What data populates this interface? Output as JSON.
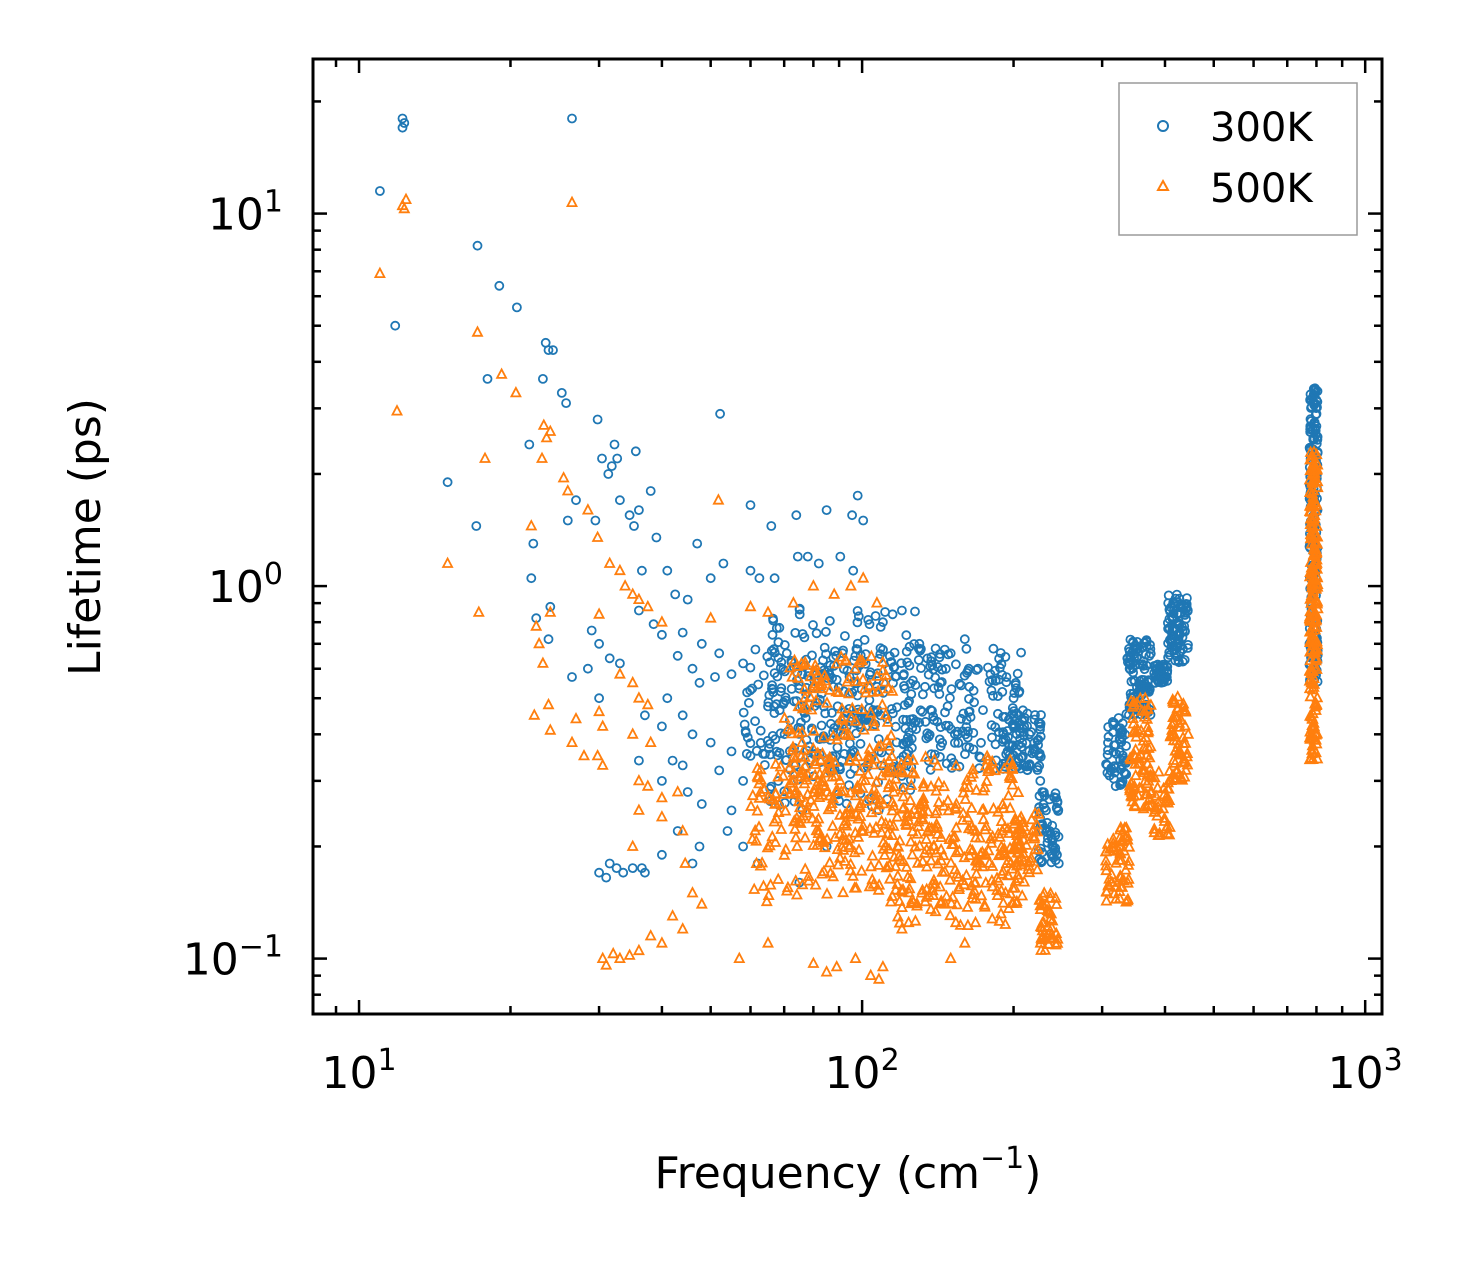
{
  "chart_data": {
    "type": "scatter",
    "xscale": "log",
    "yscale": "log",
    "xlabel": "Frequency (cm",
    "xlabel_sup": "−1",
    "xlabel_close": ")",
    "ylabel": "Lifetime (ps)",
    "xlim": [
      8.1,
      1080
    ],
    "ylim": [
      0.071,
      26
    ],
    "xticks": [
      {
        "value": 10,
        "base": "10",
        "exp": "1"
      },
      {
        "value": 100,
        "base": "10",
        "exp": "2"
      },
      {
        "value": 1000,
        "base": "10",
        "exp": "3"
      }
    ],
    "yticks": [
      {
        "value": 0.1,
        "base": "10",
        "exp": "−1"
      },
      {
        "value": 1,
        "base": "10",
        "exp": "0"
      },
      {
        "value": 10,
        "base": "10",
        "exp": "1"
      }
    ],
    "legend_position": "top-right",
    "colors": {
      "series_300K": "#1f77b4",
      "series_500K": "#ff7f0e",
      "axis": "#000000",
      "legend_border": "#9a9a9a"
    },
    "series": [
      {
        "name": "300K",
        "marker": "circle",
        "points": [
          [
            12.2,
            18.0
          ],
          [
            12.2,
            17.0
          ],
          [
            12.3,
            17.5
          ],
          [
            26.5,
            18.0
          ],
          [
            11.0,
            11.5
          ],
          [
            11.8,
            5.0
          ],
          [
            17.2,
            8.2
          ],
          [
            19.0,
            6.4
          ],
          [
            20.6,
            5.6
          ],
          [
            23.5,
            4.5
          ],
          [
            23.8,
            4.3
          ],
          [
            18.0,
            3.6
          ],
          [
            23.2,
            3.6
          ],
          [
            25.3,
            3.3
          ],
          [
            25.8,
            3.1
          ],
          [
            29.8,
            2.8
          ],
          [
            24.3,
            4.3
          ],
          [
            21.8,
            2.4
          ],
          [
            32.2,
            2.4
          ],
          [
            35.5,
            2.3
          ],
          [
            30.4,
            2.2
          ],
          [
            32.6,
            2.2
          ],
          [
            31.3,
            2.0
          ],
          [
            31.8,
            2.1
          ],
          [
            15.0,
            1.9
          ],
          [
            38.0,
            1.8
          ],
          [
            27.0,
            1.7
          ],
          [
            33.0,
            1.7
          ],
          [
            52.2,
            2.9
          ],
          [
            17.1,
            1.45
          ],
          [
            26.0,
            1.5
          ],
          [
            29.5,
            1.5
          ],
          [
            34.5,
            1.55
          ],
          [
            35.2,
            1.45
          ],
          [
            36.0,
            1.6
          ],
          [
            22.2,
            1.3
          ],
          [
            39.0,
            1.35
          ],
          [
            47.0,
            1.3
          ],
          [
            41.0,
            1.1
          ],
          [
            60.0,
            1.65
          ],
          [
            66.0,
            1.45
          ],
          [
            74.0,
            1.55
          ],
          [
            85.0,
            1.6
          ],
          [
            95.5,
            1.55
          ],
          [
            98.0,
            1.75
          ],
          [
            100.5,
            1.5
          ],
          [
            22.0,
            1.05
          ],
          [
            24.0,
            0.88
          ],
          [
            36.5,
            1.1
          ],
          [
            42.5,
            0.95
          ],
          [
            45.0,
            0.92
          ],
          [
            50.0,
            1.05
          ],
          [
            53.0,
            1.15
          ],
          [
            60.0,
            1.1
          ],
          [
            62.5,
            1.05
          ],
          [
            67.0,
            1.05
          ],
          [
            74.5,
            1.2
          ],
          [
            78.0,
            1.2
          ],
          [
            82.0,
            1.15
          ],
          [
            90.5,
            1.2
          ],
          [
            96.0,
            1.1
          ],
          [
            22.5,
            0.82
          ],
          [
            23.8,
            0.72
          ],
          [
            29.0,
            0.76
          ],
          [
            30.0,
            0.7
          ],
          [
            31.5,
            0.64
          ],
          [
            28.5,
            0.6
          ],
          [
            33.0,
            0.62
          ],
          [
            30.0,
            0.5
          ],
          [
            26.5,
            0.57
          ],
          [
            36.0,
            0.86
          ],
          [
            38.5,
            0.79
          ],
          [
            40.0,
            0.74
          ],
          [
            44.0,
            0.75
          ],
          [
            48.0,
            0.7
          ],
          [
            43.0,
            0.65
          ],
          [
            52.0,
            0.66
          ],
          [
            46.0,
            0.6
          ],
          [
            58.0,
            0.62
          ],
          [
            47.5,
            0.55
          ],
          [
            51.0,
            0.57
          ],
          [
            55.0,
            0.58
          ],
          [
            41.0,
            0.5
          ],
          [
            44.0,
            0.45
          ],
          [
            37.0,
            0.45
          ],
          [
            40.0,
            0.42
          ],
          [
            46.0,
            0.4
          ],
          [
            50.0,
            0.38
          ],
          [
            55.0,
            0.36
          ],
          [
            60.0,
            0.35
          ],
          [
            42.0,
            0.34
          ],
          [
            44.0,
            0.33
          ],
          [
            52.0,
            0.32
          ],
          [
            58.0,
            0.3
          ],
          [
            36.0,
            0.34
          ],
          [
            40.0,
            0.3
          ],
          [
            45.0,
            0.28
          ],
          [
            48.0,
            0.26
          ],
          [
            55.0,
            0.25
          ],
          [
            43.0,
            0.22
          ],
          [
            47.5,
            0.2
          ],
          [
            54.0,
            0.22
          ],
          [
            40.0,
            0.19
          ],
          [
            46.0,
            0.18
          ],
          [
            30.0,
            0.17
          ],
          [
            31.5,
            0.18
          ],
          [
            32.5,
            0.175
          ],
          [
            33.5,
            0.17
          ],
          [
            35.0,
            0.175
          ],
          [
            36.5,
            0.175
          ],
          [
            37.0,
            0.17
          ],
          [
            31.0,
            0.165
          ],
          [
            58.0,
            0.2
          ],
          [
            62.0,
            0.18
          ],
          [
            75.0,
            0.16
          ],
          [
            85.0,
            0.2
          ],
          [
            120.0,
            0.86
          ],
          [
            115.0,
            0.84
          ],
          [
            110.0,
            0.8
          ],
          [
            130.0,
            0.7
          ],
          [
            140.0,
            0.68
          ],
          [
            150.0,
            0.66
          ],
          [
            160.0,
            0.72
          ],
          [
            170.0,
            0.6
          ],
          [
            180.0,
            0.58
          ],
          [
            190.0,
            0.52
          ],
          [
            200.0,
            0.5
          ],
          [
            205.0,
            0.45
          ],
          [
            210.0,
            0.42
          ],
          [
            215.0,
            0.4
          ],
          [
            220.0,
            0.38
          ],
          [
            226.0,
            0.3
          ],
          [
            228.0,
            0.28
          ],
          [
            232.0,
            0.25
          ],
          [
            236.0,
            0.22
          ],
          [
            240.0,
            0.2
          ],
          [
            244.0,
            0.19
          ],
          [
            246.0,
            0.18
          ]
        ],
        "clusters": [
          {
            "x": [
              58,
              210
            ],
            "y": [
              0.32,
              0.68
            ],
            "n": 360
          },
          {
            "x": [
              65,
              130
            ],
            "y": [
              0.25,
              0.9
            ],
            "n": 170
          },
          {
            "x": [
              190,
              228
            ],
            "y": [
              0.32,
              0.46
            ],
            "n": 80
          },
          {
            "x": [
              224,
              246
            ],
            "y": [
              0.18,
              0.28
            ],
            "n": 55
          },
          {
            "x": [
              305,
              335
            ],
            "y": [
              0.29,
              0.45
            ],
            "n": 55
          },
          {
            "x": [
              335,
              375
            ],
            "y": [
              0.45,
              0.72
            ],
            "n": 110
          },
          {
            "x": [
              380,
              405
            ],
            "y": [
              0.55,
              0.62
            ],
            "n": 40
          },
          {
            "x": [
              405,
              445
            ],
            "y": [
              0.62,
              0.95
            ],
            "n": 90
          },
          {
            "x": [
              775,
              805
            ],
            "y": [
              0.55,
              3.4
            ],
            "n": 210
          }
        ]
      },
      {
        "name": "500K",
        "marker": "triangle",
        "points": [
          [
            12.2,
            10.5
          ],
          [
            12.3,
            10.3
          ],
          [
            12.4,
            10.9
          ],
          [
            26.5,
            10.7
          ],
          [
            11.0,
            6.9
          ],
          [
            11.9,
            2.95
          ],
          [
            17.2,
            4.8
          ],
          [
            19.2,
            3.7
          ],
          [
            20.5,
            3.3
          ],
          [
            23.3,
            2.7
          ],
          [
            23.6,
            2.5
          ],
          [
            24.0,
            2.6
          ],
          [
            17.8,
            2.2
          ],
          [
            23.1,
            2.2
          ],
          [
            25.5,
            1.95
          ],
          [
            26.0,
            1.8
          ],
          [
            28.5,
            1.6
          ],
          [
            51.8,
            1.7
          ],
          [
            15.0,
            1.15
          ],
          [
            17.3,
            0.85
          ],
          [
            22.0,
            1.45
          ],
          [
            29.8,
            1.35
          ],
          [
            31.5,
            1.15
          ],
          [
            33.0,
            1.1
          ],
          [
            33.8,
            1.0
          ],
          [
            35.0,
            0.95
          ],
          [
            36.0,
            0.92
          ],
          [
            24.0,
            0.85
          ],
          [
            30.0,
            0.84
          ],
          [
            37.5,
            0.88
          ],
          [
            40.0,
            0.8
          ],
          [
            50.0,
            0.82
          ],
          [
            60.0,
            0.88
          ],
          [
            65.0,
            0.85
          ],
          [
            73.0,
            0.9
          ],
          [
            80.0,
            1.0
          ],
          [
            88.0,
            0.95
          ],
          [
            95.0,
            1.0
          ],
          [
            100.5,
            1.05
          ],
          [
            107.0,
            0.9
          ],
          [
            22.5,
            0.78
          ],
          [
            22.8,
            0.7
          ],
          [
            23.2,
            0.62
          ],
          [
            23.8,
            0.48
          ],
          [
            22.3,
            0.45
          ],
          [
            24.0,
            0.41
          ],
          [
            27.0,
            0.44
          ],
          [
            26.5,
            0.38
          ],
          [
            28.0,
            0.35
          ],
          [
            30.0,
            0.46
          ],
          [
            30.5,
            0.42
          ],
          [
            29.8,
            0.35
          ],
          [
            30.5,
            0.33
          ],
          [
            33.0,
            0.58
          ],
          [
            35.0,
            0.55
          ],
          [
            36.0,
            0.5
          ],
          [
            37.5,
            0.48
          ],
          [
            35.0,
            0.4
          ],
          [
            38.0,
            0.38
          ],
          [
            36.0,
            0.3
          ],
          [
            37.5,
            0.29
          ],
          [
            40.0,
            0.27
          ],
          [
            43.0,
            0.28
          ],
          [
            36.0,
            0.25
          ],
          [
            40.0,
            0.24
          ],
          [
            44.0,
            0.22
          ],
          [
            35.0,
            0.2
          ],
          [
            44.5,
            0.18
          ],
          [
            46.0,
            0.15
          ],
          [
            48.0,
            0.14
          ],
          [
            42.0,
            0.13
          ],
          [
            44.0,
            0.12
          ],
          [
            38.0,
            0.115
          ],
          [
            40.0,
            0.11
          ],
          [
            30.5,
            0.1
          ],
          [
            31.0,
            0.096
          ],
          [
            32.0,
            0.103
          ],
          [
            33.0,
            0.1
          ],
          [
            34.5,
            0.102
          ],
          [
            36.0,
            0.105
          ],
          [
            57.0,
            0.1
          ],
          [
            65.0,
            0.11
          ],
          [
            80.0,
            0.097
          ],
          [
            85.0,
            0.092
          ],
          [
            89.0,
            0.095
          ],
          [
            97.0,
            0.1
          ],
          [
            104.0,
            0.09
          ],
          [
            108.0,
            0.088
          ],
          [
            110.0,
            0.095
          ],
          [
            120.0,
            0.12
          ],
          [
            150.0,
            0.1
          ],
          [
            160.0,
            0.11
          ]
        ],
        "clusters": [
          {
            "x": [
              60,
              210
            ],
            "y": [
              0.14,
              0.35
            ],
            "n": 380
          },
          {
            "x": [
              70,
              115
            ],
            "y": [
              0.2,
              0.65
            ],
            "n": 190
          },
          {
            "x": [
              115,
              200
            ],
            "y": [
              0.12,
              0.26
            ],
            "n": 120
          },
          {
            "x": [
              200,
              225
            ],
            "y": [
              0.17,
              0.25
            ],
            "n": 45
          },
          {
            "x": [
              225,
              245
            ],
            "y": [
              0.105,
              0.15
            ],
            "n": 45
          },
          {
            "x": [
              305,
              340
            ],
            "y": [
              0.14,
              0.23
            ],
            "n": 60
          },
          {
            "x": [
              340,
              375
            ],
            "y": [
              0.25,
              0.5
            ],
            "n": 80
          },
          {
            "x": [
              375,
              410
            ],
            "y": [
              0.21,
              0.32
            ],
            "n": 40
          },
          {
            "x": [
              410,
              445
            ],
            "y": [
              0.3,
              0.52
            ],
            "n": 60
          },
          {
            "x": [
              775,
              805
            ],
            "y": [
              0.34,
              2.3
            ],
            "n": 210
          }
        ]
      }
    ]
  }
}
